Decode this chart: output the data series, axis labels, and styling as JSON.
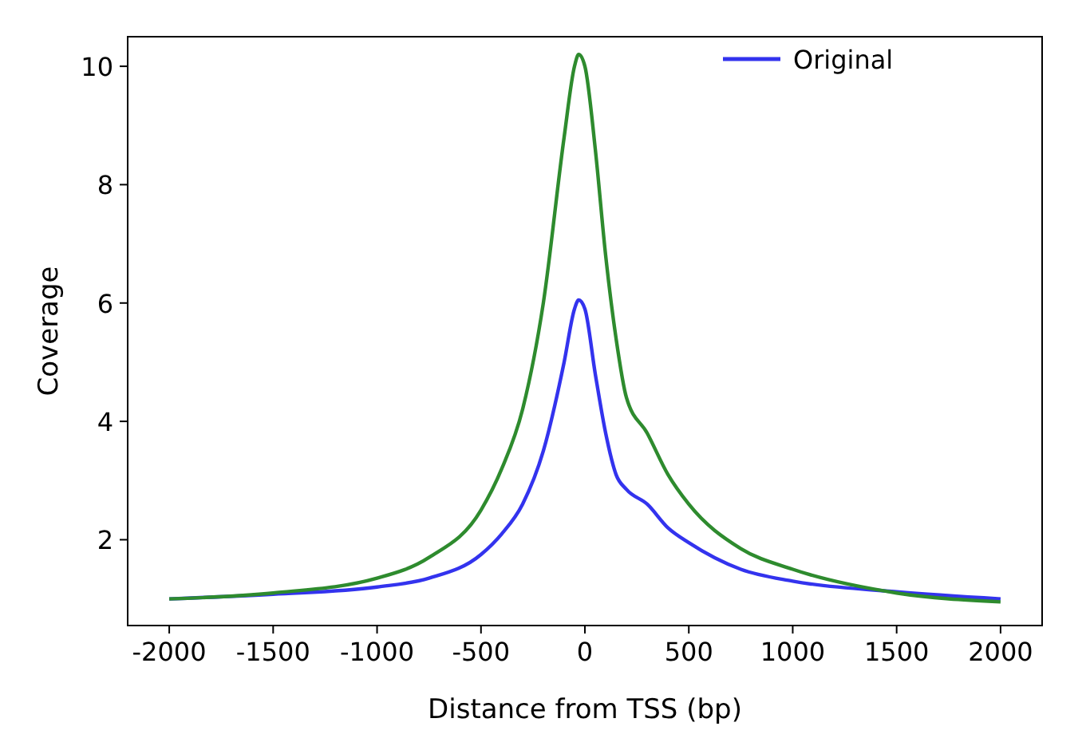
{
  "chart_data": {
    "type": "line",
    "xlabel": "Distance from TSS (bp)",
    "ylabel": "Coverage",
    "xlim": [
      -2200,
      2200
    ],
    "ylim": [
      0.55,
      10.5
    ],
    "xticks": [
      -2000,
      -1500,
      -1000,
      -500,
      0,
      500,
      1000,
      1500,
      2000
    ],
    "yticks": [
      2,
      4,
      6,
      8,
      10
    ],
    "grid": false,
    "legend": "top right",
    "marker": "none",
    "line_style": "solid",
    "series": [
      {
        "name": "Original",
        "color": "#3333ee",
        "x": [
          -2000,
          -1500,
          -1000,
          -750,
          -500,
          -400,
          -300,
          -200,
          -100,
          -50,
          -30,
          0,
          50,
          100,
          150,
          200,
          300,
          400,
          500,
          750,
          1000,
          1500,
          2000
        ],
        "values": [
          1.0,
          1.08,
          1.2,
          1.35,
          1.75,
          2.1,
          2.6,
          3.5,
          5.0,
          5.9,
          6.05,
          5.9,
          4.8,
          3.8,
          3.1,
          2.85,
          2.6,
          2.2,
          1.95,
          1.5,
          1.3,
          1.12,
          1.0
        ]
      },
      {
        "color": "#2e8b2e",
        "x": [
          -2000,
          -1500,
          -1000,
          -750,
          -500,
          -400,
          -300,
          -200,
          -100,
          -50,
          -30,
          0,
          50,
          100,
          150,
          200,
          300,
          400,
          500,
          750,
          1000,
          1500,
          2000
        ],
        "values": [
          1.0,
          1.1,
          1.35,
          1.7,
          2.5,
          3.2,
          4.2,
          6.0,
          8.8,
          10.0,
          10.2,
          10.0,
          8.6,
          6.8,
          5.4,
          4.4,
          3.8,
          3.1,
          2.6,
          1.85,
          1.5,
          1.1,
          0.95
        ]
      }
    ]
  }
}
